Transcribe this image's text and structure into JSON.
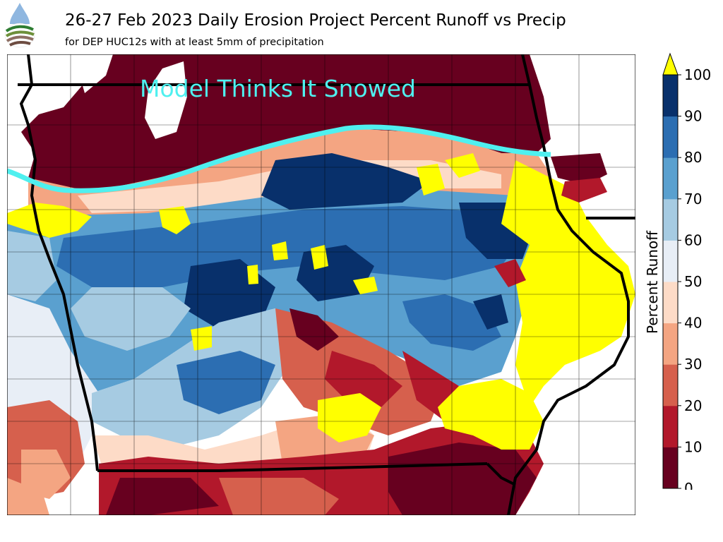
{
  "header": {
    "title": "26-27 Feb 2023 Daily Erosion Project Percent Runoff vs Precip",
    "subtitle": "for DEP HUC12s with at least 5mm of precipitation"
  },
  "logo": {
    "icon": "dep-logo-icon"
  },
  "map": {
    "annotation": "Model Thinks It Snowed",
    "annotation_color": "#4ff0ef",
    "snow_line_color": "#4ff0ef",
    "no_data_color": "#ffff00"
  },
  "colorbar": {
    "label": "Percent Runoff",
    "ticks": [
      "0",
      "10",
      "20",
      "30",
      "40",
      "50",
      "60",
      "70",
      "80",
      "90",
      "100"
    ],
    "bins": [
      {
        "range": [
          0,
          10
        ],
        "color": "#67001f"
      },
      {
        "range": [
          10,
          20
        ],
        "color": "#b2182b"
      },
      {
        "range": [
          20,
          30
        ],
        "color": "#d6604d"
      },
      {
        "range": [
          30,
          40
        ],
        "color": "#f4a582"
      },
      {
        "range": [
          40,
          50
        ],
        "color": "#fddbc7"
      },
      {
        "range": [
          50,
          60
        ],
        "color": "#e8eef6"
      },
      {
        "range": [
          60,
          70
        ],
        "color": "#a6cbe2"
      },
      {
        "range": [
          70,
          80
        ],
        "color": "#5aa0cf"
      },
      {
        "range": [
          80,
          90
        ],
        "color": "#2c6eb2"
      },
      {
        "range": [
          90,
          100
        ],
        "color": "#08306b"
      }
    ],
    "extend_color": "#ffff00"
  }
}
